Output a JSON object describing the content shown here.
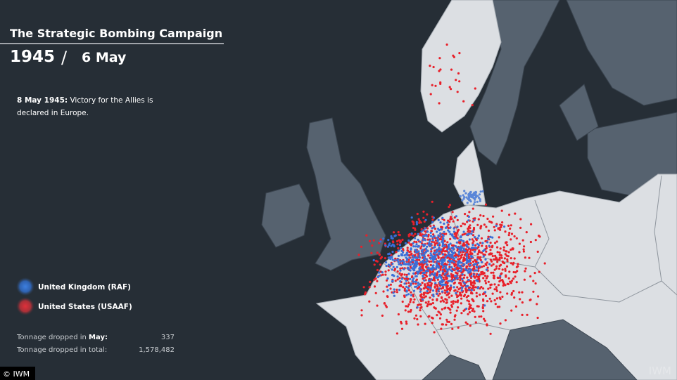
{
  "header": {
    "title": "The Strategic Bombing Campaign",
    "year": "1945",
    "separator": "/",
    "date": "6 May"
  },
  "note": {
    "date": "8 May 1945:",
    "lines": [
      "Victory for the Allies is",
      "declared in Europe."
    ]
  },
  "legend": [
    "United Kingdom (RAF)",
    "United States (USAAF)"
  ],
  "stats": {
    "month_label": "Tonnage dropped in",
    "month": "May",
    "colon": ":",
    "month_value": "337",
    "total_label": "Tonnage dropped in total:",
    "total_value": "1,578,482"
  },
  "watermark": "IWM",
  "credit": "© IWM"
}
